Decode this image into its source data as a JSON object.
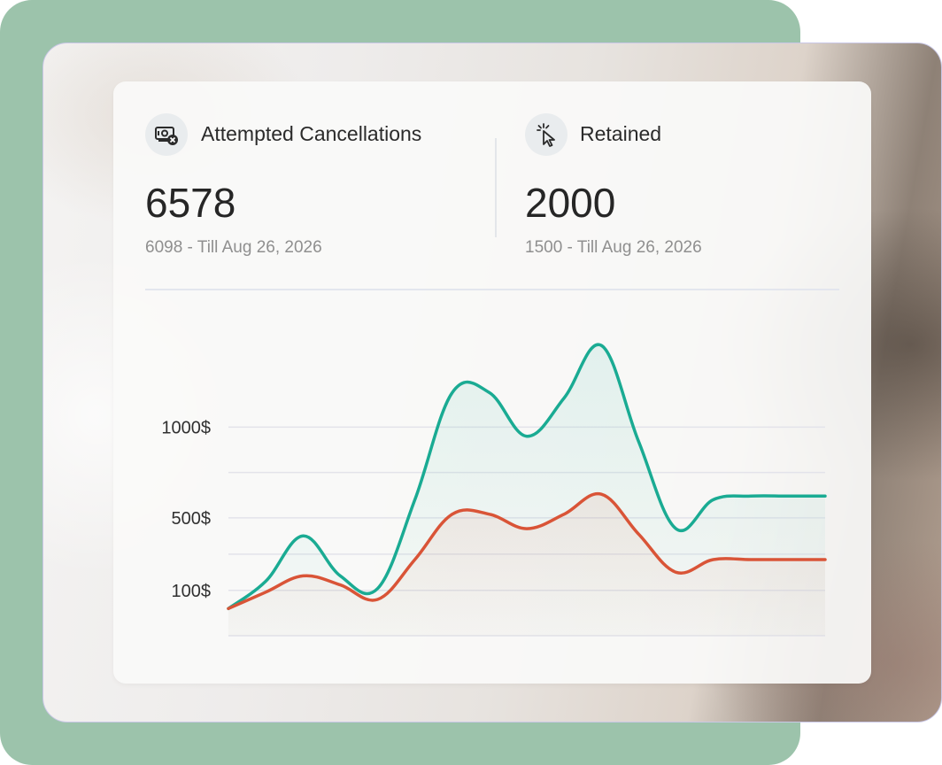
{
  "stats": [
    {
      "label": "Attempted Cancellations",
      "value": "6578",
      "sub": "6098 - Till Aug 26, 2026",
      "icon": "cash-cancel-icon"
    },
    {
      "label": "Retained",
      "value": "2000",
      "sub": "1500 - Till Aug 26, 2026",
      "icon": "cursor-click-icon"
    }
  ],
  "colors": {
    "green_back": "#9cc3ab",
    "series_teal": "#1aab93",
    "series_red": "#d95437",
    "grid": "#e3e3ea"
  },
  "chart_data": {
    "type": "area",
    "ytick_labels": [
      "1000$",
      "500$",
      "100$"
    ],
    "ytick_values": [
      1000,
      500,
      100
    ],
    "ylim": [
      -150,
      1500
    ],
    "grid": true,
    "x": [
      0,
      1,
      2,
      3,
      4,
      5,
      6,
      7,
      8,
      9,
      10,
      11,
      12,
      13,
      14,
      15,
      16
    ],
    "series": [
      {
        "values": [
          0,
          150,
          400,
          180,
          110,
          600,
          1190,
          1190,
          950,
          1160,
          1450,
          920,
          440,
          600,
          620,
          620,
          620
        ],
        "color": "#1aab93"
      },
      {
        "values": [
          0,
          90,
          180,
          130,
          50,
          270,
          520,
          520,
          440,
          520,
          630,
          410,
          200,
          270,
          270,
          270,
          270
        ],
        "color": "#d95437"
      }
    ]
  }
}
